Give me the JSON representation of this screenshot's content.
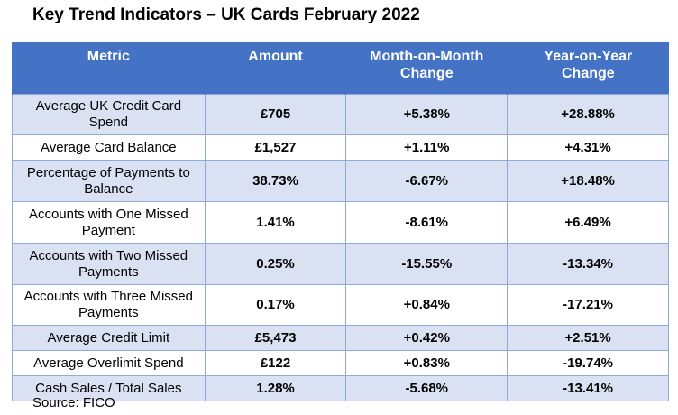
{
  "title": "Key Trend Indicators – UK Cards February 2022",
  "source": "Source: FICO",
  "chart_data": {
    "type": "table",
    "columns": [
      "Metric",
      "Amount",
      "Month-on-Month Change",
      "Year-on-Year Change"
    ],
    "rows": [
      [
        "Average UK Credit Card Spend",
        "£705",
        "+5.38%",
        "+28.88%"
      ],
      [
        "Average Card Balance",
        "£1,527",
        "+1.11%",
        "+4.31%"
      ],
      [
        "Percentage of Payments to Balance",
        "38.73%",
        "-6.67%",
        "+18.48%"
      ],
      [
        "Accounts with One Missed Payment",
        "1.41%",
        "-8.61%",
        "+6.49%"
      ],
      [
        "Accounts with Two Missed Payments",
        "0.25%",
        "-15.55%",
        "-13.34%"
      ],
      [
        "Accounts with Three Missed Payments",
        "0.17%",
        "+0.84%",
        "-17.21%"
      ],
      [
        "Average Credit Limit",
        "£5,473",
        "+0.42%",
        "+2.51%"
      ],
      [
        "Average Overlimit Spend",
        "£122",
        "+0.83%",
        "-19.74%"
      ],
      [
        "Cash Sales / Total Sales",
        "1.28%",
        "-5.68%",
        "-13.41%"
      ]
    ]
  },
  "colors": {
    "header": "#4472c4",
    "band": "#d9e1f2",
    "border": "#8eaadb"
  }
}
